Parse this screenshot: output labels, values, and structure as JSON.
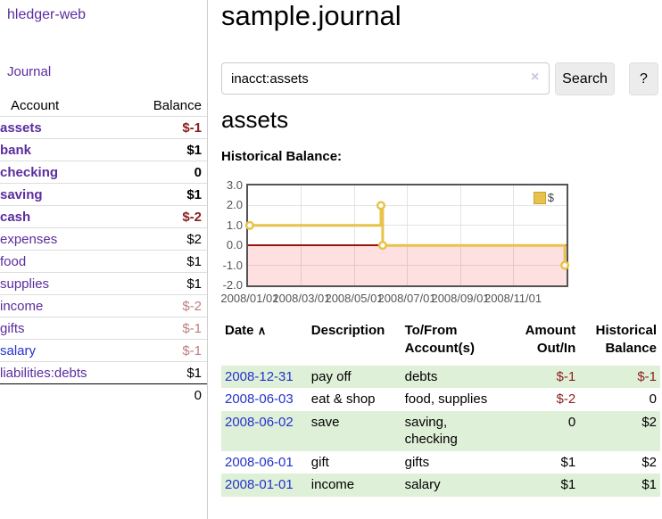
{
  "colors": {
    "purple_link": "#5b2d9e",
    "blue_link": "#2433cc",
    "negative_strong": "#8b1e1e",
    "negative_soft": "#bd7f7f",
    "row_green": "#dff0d8",
    "chart_line": "#e8c24a",
    "chart_zero_line": "#991111",
    "chart_negative_fill": "rgba(255,0,0,0.12)"
  },
  "sidebar": {
    "brand": "hledger-web",
    "journal_link": "Journal",
    "accounts_header": {
      "account": "Account",
      "balance": "Balance"
    },
    "accounts": [
      {
        "name": "assets",
        "level": 1,
        "bold": true,
        "balance": "$-1",
        "balance_class": "neg-strong",
        "blue": false
      },
      {
        "name": "bank",
        "level": 2,
        "bold": true,
        "balance": "$1",
        "balance_class": "b",
        "blue": false
      },
      {
        "name": "checking",
        "level": 3,
        "bold": true,
        "balance": "0",
        "balance_class": "b",
        "blue": false
      },
      {
        "name": "saving",
        "level": 3,
        "bold": true,
        "balance": "$1",
        "balance_class": "b",
        "blue": false
      },
      {
        "name": "cash",
        "level": 2,
        "bold": true,
        "balance": "$-2",
        "balance_class": "neg-strong",
        "blue": false
      },
      {
        "name": "expenses",
        "level": 1,
        "bold": false,
        "balance": "$2",
        "balance_class": "",
        "blue": false
      },
      {
        "name": "food",
        "level": 2,
        "bold": false,
        "balance": "$1",
        "balance_class": "",
        "blue": false
      },
      {
        "name": "supplies",
        "level": 2,
        "bold": false,
        "balance": "$1",
        "balance_class": "",
        "blue": false
      },
      {
        "name": "income",
        "level": 1,
        "bold": false,
        "balance": "$-2",
        "balance_class": "neg-soft",
        "blue": false
      },
      {
        "name": "gifts",
        "level": 2,
        "bold": false,
        "balance": "$-1",
        "balance_class": "neg-soft",
        "blue": false
      },
      {
        "name": "salary",
        "level": 2,
        "bold": false,
        "balance": "$-1",
        "balance_class": "neg-soft",
        "blue": true
      },
      {
        "name": "liabilities:debts",
        "level": 1,
        "bold": false,
        "balance": "$1",
        "balance_class": "",
        "blue": false
      }
    ],
    "total": "0"
  },
  "main": {
    "title": "sample.journal",
    "search": {
      "value": "inacct:assets",
      "clear_icon": "×",
      "search_label": "Search",
      "help_label": "?"
    },
    "account_heading": "assets",
    "chart_label": "Historical Balance:"
  },
  "chart_data": {
    "type": "line",
    "step": true,
    "title": "Historical Balance:",
    "series": [
      {
        "name": "$",
        "points": [
          {
            "date": "2008-01-01",
            "value": 1
          },
          {
            "date": "2008-06-01",
            "value": 2
          },
          {
            "date": "2008-06-03",
            "value": 0
          },
          {
            "date": "2008-12-31",
            "value": -1
          }
        ]
      }
    ],
    "ylim": [
      -2,
      3
    ],
    "xlim": [
      "2007-12-30",
      "2009-01-02"
    ],
    "yticks": [
      "3.0",
      "2.0",
      "1.0",
      "0.0",
      "-1.0",
      "-2.0"
    ],
    "xticks": [
      {
        "label": "2008/01/01",
        "date": "2008-01-01"
      },
      {
        "label": "2008/03/01",
        "date": "2008-03-01"
      },
      {
        "label": "2008/05/01",
        "date": "2008-05-01"
      },
      {
        "label": "2008/07/01",
        "date": "2008-07-01"
      },
      {
        "label": "2008/09/01",
        "date": "2008-09-01"
      },
      {
        "label": "2008/11/01",
        "date": "2008-11-01"
      }
    ],
    "grid": true,
    "legend_position": "top-right",
    "legend_label": "$"
  },
  "register": {
    "sort_icon": "∧",
    "header": [
      {
        "lines": [
          "Date"
        ],
        "align": "left",
        "sortable": true
      },
      {
        "lines": [
          "Description"
        ],
        "align": "left",
        "sortable": false
      },
      {
        "lines": [
          "To/From",
          "Account(s)"
        ],
        "align": "left",
        "sortable": false
      },
      {
        "lines": [
          "Amount",
          "Out/In"
        ],
        "align": "right",
        "sortable": false
      },
      {
        "lines": [
          "Historical",
          "Balance"
        ],
        "align": "right",
        "sortable": false
      }
    ],
    "rows": [
      {
        "date": "2008-12-31",
        "description": "pay off",
        "accounts": "debts",
        "amount": "$-1",
        "amount_neg": true,
        "balance": "$-1",
        "balance_neg": true,
        "shaded": true
      },
      {
        "date": "2008-06-03",
        "description": "eat & shop",
        "accounts": "food, supplies",
        "amount": "$-2",
        "amount_neg": true,
        "balance": "0",
        "balance_neg": false,
        "shaded": false
      },
      {
        "date": "2008-06-02",
        "description": "save",
        "accounts": "saving, checking",
        "amount": "0",
        "amount_neg": false,
        "balance": "$2",
        "balance_neg": false,
        "shaded": true
      },
      {
        "date": "2008-06-01",
        "description": "gift",
        "accounts": "gifts",
        "amount": "$1",
        "amount_neg": false,
        "balance": "$2",
        "balance_neg": false,
        "shaded": false
      },
      {
        "date": "2008-01-01",
        "description": "income",
        "accounts": "salary",
        "amount": "$1",
        "amount_neg": false,
        "balance": "$1",
        "balance_neg": false,
        "shaded": true
      }
    ]
  }
}
